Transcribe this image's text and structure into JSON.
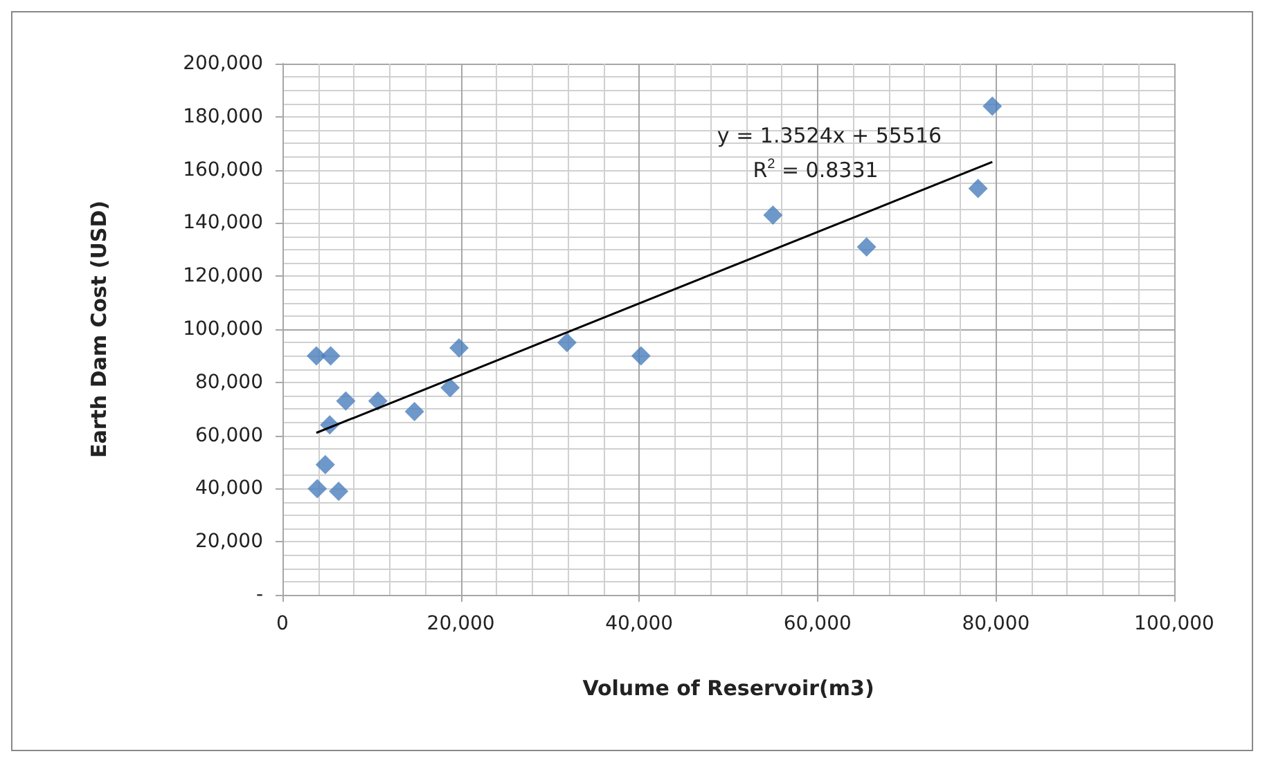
{
  "chart_data": {
    "type": "scatter",
    "xlabel": "Volume of Reservoir(m3)",
    "ylabel": "Earth Dam Cost (USD)",
    "marker": "diamond",
    "grid": true,
    "xlim": [
      0,
      100000
    ],
    "xticks": [
      0,
      {
        "value": 20000,
        "label": "20,000"
      },
      {
        "value": 40000,
        "label": "40,000"
      },
      {
        "value": 60000,
        "label": "60,000"
      },
      {
        "value": 80000,
        "label": "80,000"
      },
      {
        "value": 100000,
        "label": "100,000"
      }
    ],
    "ylim": [
      0,
      200000
    ],
    "yticks": [
      {
        "value": 0,
        "label": "-"
      },
      {
        "value": 20000,
        "label": "20,000"
      },
      {
        "value": 40000,
        "label": "40,000"
      },
      {
        "value": 60000,
        "label": "60,000"
      },
      {
        "value": 80000,
        "label": "80,000"
      },
      {
        "value": 100000,
        "label": "100,000"
      },
      {
        "value": 120000,
        "label": "120,000"
      },
      {
        "value": 140000,
        "label": "140,000"
      },
      {
        "value": 160000,
        "label": "160,000"
      },
      {
        "value": 180000,
        "label": "180,000"
      },
      {
        "value": 200000,
        "label": "200,000"
      }
    ],
    "series": [
      {
        "color": "#4a7ebb",
        "x": [
          3800,
          5400,
          7100,
          5300,
          4800,
          3900,
          6300,
          10700,
          14800,
          18800,
          19800,
          31900,
          40200,
          55000,
          65500,
          78000,
          79600
        ],
        "values": [
          90000,
          90000,
          73000,
          64000,
          49000,
          40000,
          39000,
          73000,
          69000,
          78000,
          93000,
          95000,
          90000,
          143000,
          131000,
          153000,
          184000
        ]
      },
      {
        "type": "line",
        "color": "#000000",
        "marker": "none",
        "x": [
          3800,
          79600
        ],
        "values": [
          61000,
          163000
        ]
      }
    ],
    "annotations": [
      "y = 1.3524x + 55516",
      "R$^{2}$ = 0.8331"
    ]
  }
}
